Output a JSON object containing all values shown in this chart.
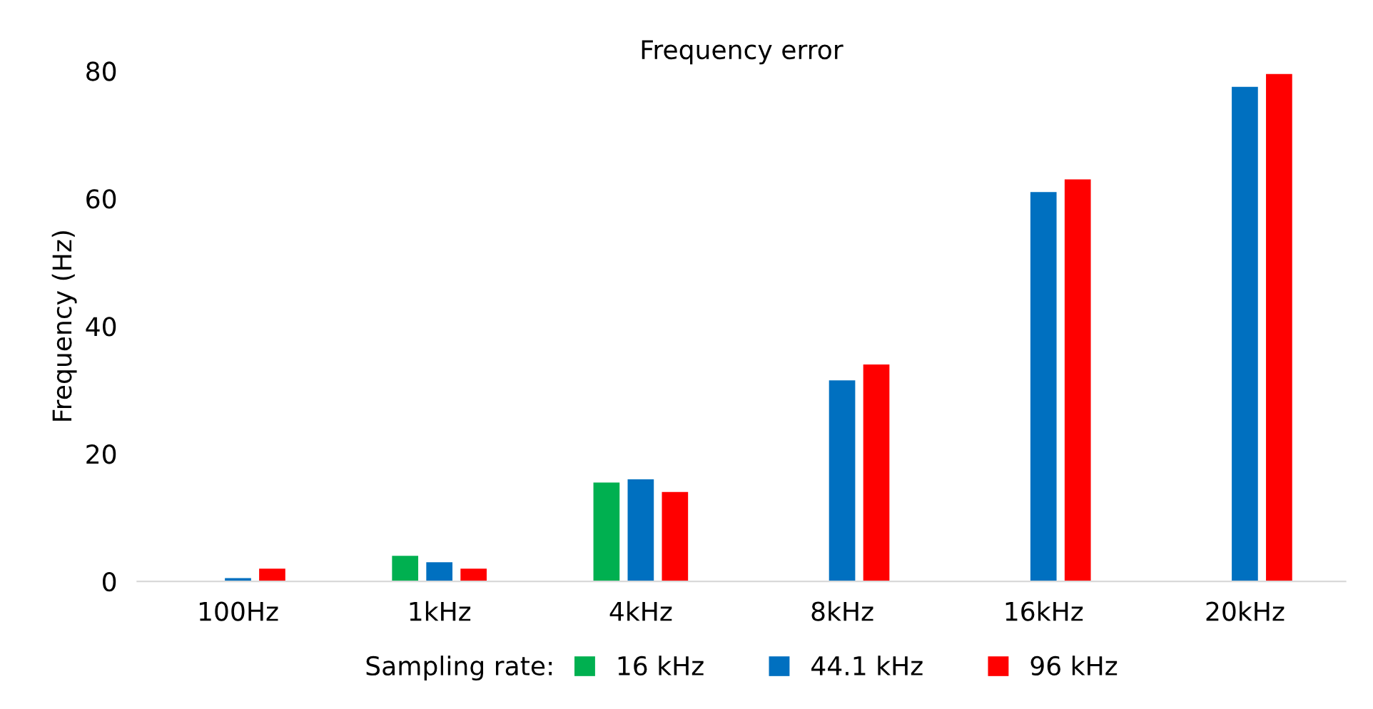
{
  "chart_data": {
    "type": "bar",
    "title": "Frequency error",
    "ylabel": "Frequency (Hz)",
    "legend_title": "Sampling rate:",
    "categories": [
      "100Hz",
      "1kHz",
      "4kHz",
      "8kHz",
      "16kHz",
      "20kHz"
    ],
    "series": [
      {
        "name": "16 kHz",
        "color": "#00b050",
        "values": [
          null,
          4,
          15.5,
          null,
          null,
          null
        ]
      },
      {
        "name": "44.1 kHz",
        "color": "#0070c0",
        "values": [
          0.5,
          3,
          16,
          31.5,
          61,
          77.5
        ]
      },
      {
        "name": "96 kHz",
        "color": "#ff0000",
        "values": [
          2,
          2,
          14,
          34,
          63,
          79.5
        ]
      }
    ],
    "ylim": [
      0,
      80
    ],
    "yticks": [
      0,
      20,
      40,
      60,
      80
    ],
    "grid": false,
    "legend": "bottom"
  }
}
